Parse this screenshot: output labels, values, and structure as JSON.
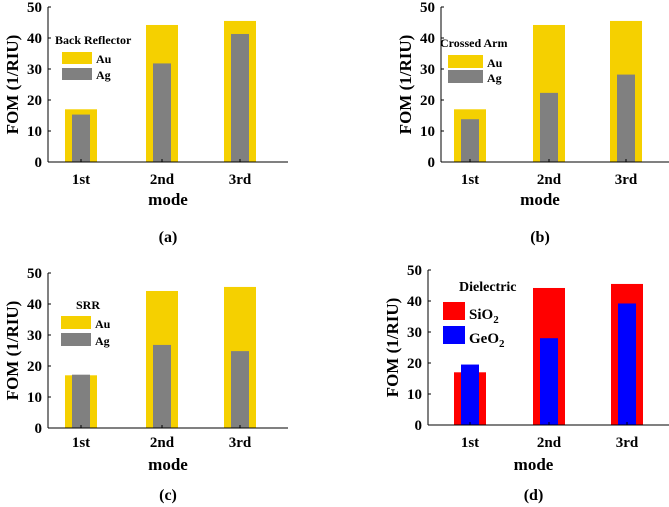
{
  "chart_data": [
    {
      "type": "bar",
      "panel": "(a)",
      "legend_title": "Back Reflector",
      "categories": [
        "1st",
        "2nd",
        "3rd"
      ],
      "series": [
        {
          "name": "Au",
          "color": "#F5D000",
          "values": [
            17,
            44.2,
            45.5
          ]
        },
        {
          "name": "Ag",
          "color": "#808080",
          "values": [
            15.3,
            31.8,
            41.3
          ]
        }
      ],
      "xlabel": "mode",
      "ylabel": "FOM (1/RIU)",
      "ylim": [
        0,
        50
      ],
      "yticks": [
        "0",
        "10",
        "20",
        "30",
        "40",
        "50"
      ],
      "legend_position": "top-left"
    },
    {
      "type": "bar",
      "panel": "(b)",
      "legend_title": "Crossed Arm",
      "categories": [
        "1st",
        "2nd",
        "3rd"
      ],
      "series": [
        {
          "name": "Au",
          "color": "#F5D000",
          "values": [
            17,
            44.2,
            45.5
          ]
        },
        {
          "name": "Ag",
          "color": "#808080",
          "values": [
            13.8,
            22.3,
            28.2
          ]
        }
      ],
      "xlabel": "mode",
      "ylabel": "FOM (1/RIU)",
      "ylim": [
        0,
        50
      ],
      "yticks": [
        "0",
        "10",
        "20",
        "30",
        "40",
        "50"
      ],
      "legend_position": "top-left"
    },
    {
      "type": "bar",
      "panel": "(c)",
      "legend_title": "SRR",
      "categories": [
        "1st",
        "2nd",
        "3rd"
      ],
      "series": [
        {
          "name": "Au",
          "color": "#F5D000",
          "values": [
            17,
            44.2,
            45.5
          ]
        },
        {
          "name": "Ag",
          "color": "#808080",
          "values": [
            17.2,
            26.8,
            24.8
          ]
        }
      ],
      "xlabel": "mode",
      "ylabel": "FOM (1/RIU)",
      "ylim": [
        0,
        50
      ],
      "yticks": [
        "0",
        "10",
        "20",
        "30",
        "40",
        "50"
      ],
      "legend_position": "top-left"
    },
    {
      "type": "bar",
      "panel": "(d)",
      "legend_title": "Dielectric",
      "categories": [
        "1st",
        "2nd",
        "3rd"
      ],
      "series": [
        {
          "name": "SiO",
          "subscript": "2",
          "color": "#FF0000",
          "values": [
            17,
            44.2,
            45.5
          ]
        },
        {
          "name": "GeO",
          "subscript": "2",
          "color": "#0000FF",
          "values": [
            19.5,
            28,
            39.2
          ]
        }
      ],
      "xlabel": "mode",
      "ylabel": "FOM (1/RIU)",
      "ylim": [
        0,
        50
      ],
      "yticks": [
        "0",
        "10",
        "20",
        "30",
        "40",
        "50"
      ],
      "legend_position": "top-left"
    }
  ]
}
